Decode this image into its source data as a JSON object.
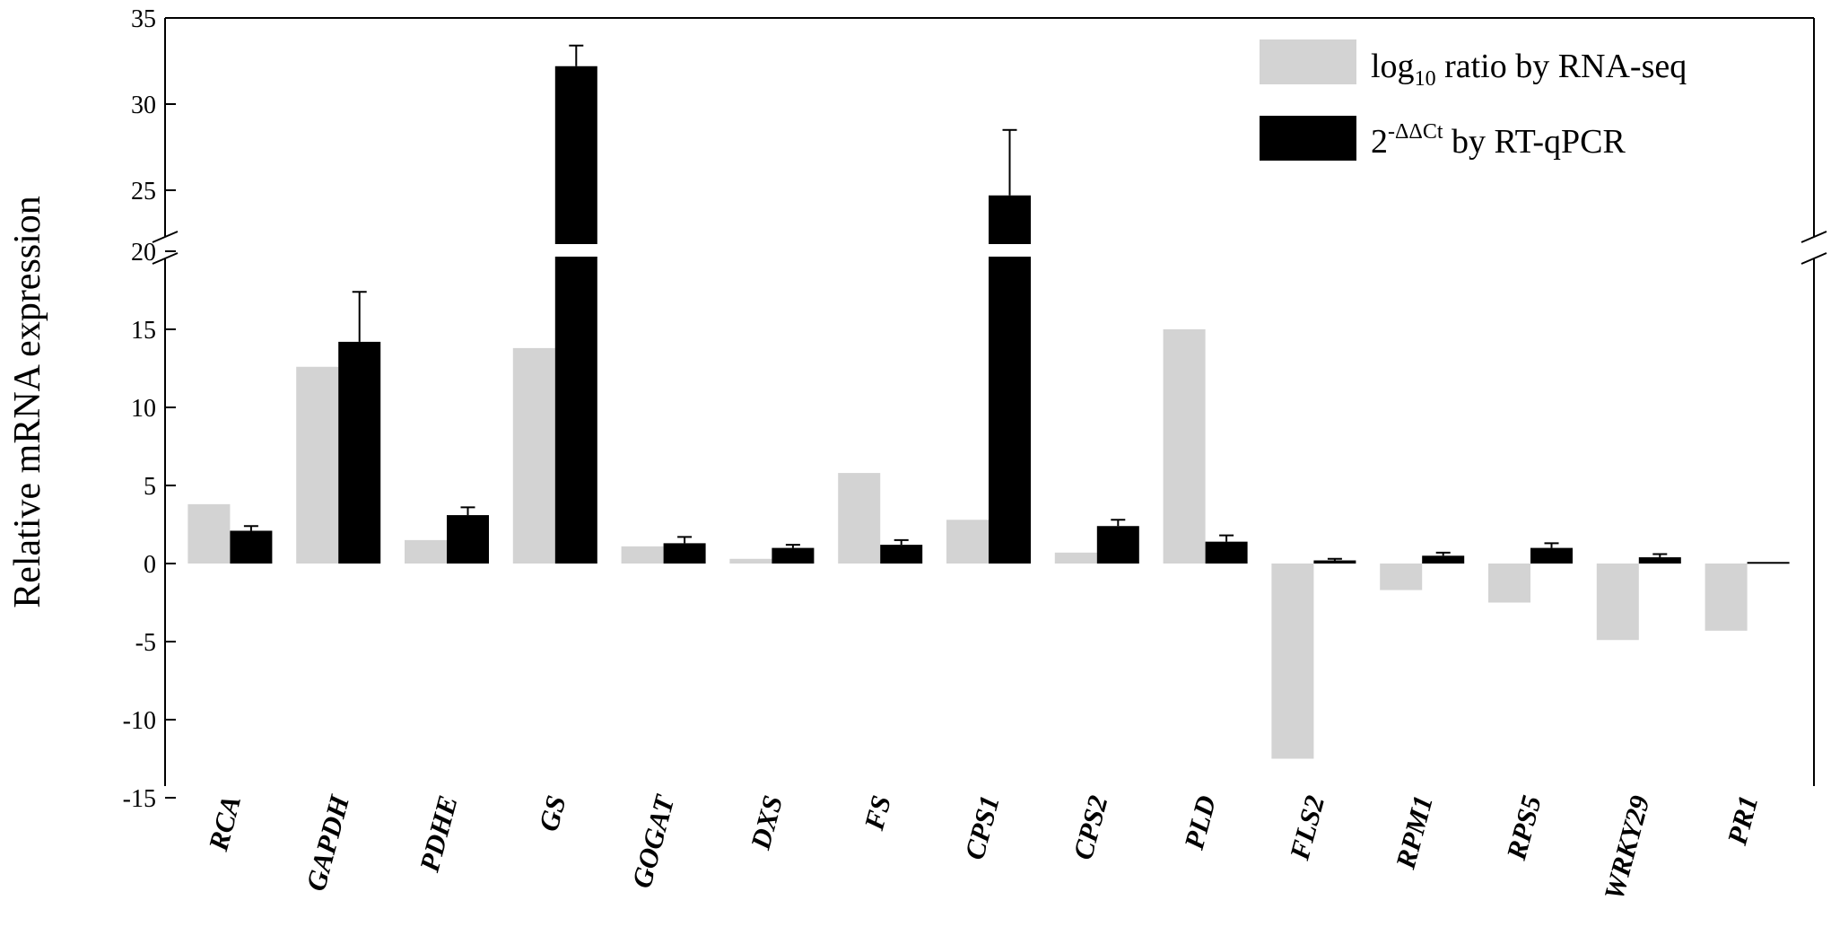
{
  "chart_data": {
    "type": "bar",
    "ylabel": "Relative  mRNA expression",
    "categories": [
      "RCA",
      "GAPDH",
      "PDHE",
      "GS",
      "GOGAT",
      "DXS",
      "FS",
      "CPS1",
      "CPS2",
      "PLD",
      "FLS2",
      "RPM1",
      "RPS5",
      "WRKY29",
      "PR1"
    ],
    "series": [
      {
        "name": "log10 ratio by RNA-seq",
        "color": "#d3d3d3",
        "values": [
          3.8,
          12.6,
          1.5,
          13.8,
          1.1,
          0.3,
          5.8,
          2.8,
          0.7,
          15.0,
          -12.5,
          -1.7,
          -2.5,
          -4.9,
          -4.3
        ]
      },
      {
        "name": "2-ΔΔCt by RT-qPCR",
        "color": "#000000",
        "values": [
          2.1,
          14.2,
          3.1,
          32.2,
          1.3,
          1.0,
          1.2,
          24.7,
          2.4,
          1.4,
          0.2,
          0.5,
          1.0,
          0.4,
          0.1
        ],
        "error": [
          0.3,
          3.2,
          0.5,
          1.2,
          0.4,
          0.2,
          0.3,
          3.8,
          0.4,
          0.4,
          0.1,
          0.2,
          0.3,
          0.2,
          0.0
        ]
      }
    ],
    "yticks_lower": [
      -15,
      -10,
      -5,
      0,
      5,
      10,
      15,
      20
    ],
    "yticks_upper": [
      25,
      30,
      35
    ],
    "ylim_lower": [
      -15,
      20
    ],
    "ylim_upper": [
      20,
      35
    ],
    "axis_break": "between 20 and 25",
    "legend_placement": "top-right",
    "grid": false
  },
  "legend": {
    "entry1_main": "log",
    "entry1_sub": "10",
    "entry1_rest": " ratio by RNA-seq",
    "entry2_main": "2",
    "entry2_sup": "-ΔΔCt",
    "entry2_rest": " by  RT-qPCR"
  }
}
